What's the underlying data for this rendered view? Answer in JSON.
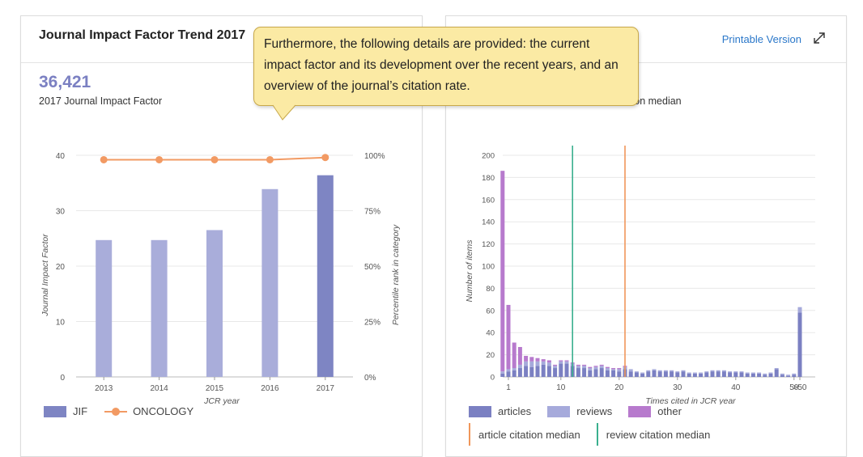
{
  "left_panel": {
    "title": "Journal Impact Factor Trend 2017",
    "jif_value": "36,421",
    "jif_caption": "2017 Journal Impact Factor"
  },
  "right_panel": {
    "printable_label": "Printable Version",
    "caption_fragment": "tion median"
  },
  "tooltip": {
    "text": "Furthermore, the following details are provided: the current impact factor and its development over the recent years, and an overview of the journal’s citation rate."
  },
  "colors": {
    "jif": "#7e85c3",
    "jif_light": "#a9adda",
    "oncology": "#f29a63",
    "articles": "#7b80c2",
    "reviews": "#a6aadb",
    "other": "#b77acd",
    "article_median": "#f0965a",
    "review_median": "#3aaf8e"
  },
  "chart_data": [
    {
      "type": "bar",
      "categories": [
        "2013",
        "2014",
        "2015",
        "2016",
        "2017"
      ],
      "series": [
        {
          "name": "JIF",
          "values": [
            24.7,
            24.7,
            26.5,
            33.9,
            36.4
          ]
        },
        {
          "name": "ONCOLOGY",
          "values": [
            98,
            98,
            98,
            98,
            99
          ]
        }
      ],
      "xlabel": "JCR year",
      "ylabel": "Journal Impact Factor",
      "y2label": "Percentile rank in category",
      "ylim": [
        0,
        40
      ],
      "yticks": [
        "0",
        "10",
        "20",
        "30",
        "40"
      ],
      "y2lim": [
        0,
        100
      ],
      "y2ticks": [
        "0%",
        "25%",
        "50%",
        "75%",
        "100%"
      ],
      "legend": [
        {
          "name": "JIF",
          "kind": "bar"
        },
        {
          "name": "ONCOLOGY",
          "kind": "line"
        }
      ],
      "grid": true
    },
    {
      "type": "bar",
      "xlabel": "Times cited in JCR year",
      "ylabel": "Number of items",
      "ylim": [
        0,
        200
      ],
      "yticks": [
        "0",
        "20",
        "40",
        "60",
        "80",
        "100",
        "120",
        "140",
        "160",
        "180",
        "200"
      ],
      "xtick_labels": [
        {
          "x": 1,
          "label": "1"
        },
        {
          "x": 10,
          "label": "10"
        },
        {
          "x": 20,
          "label": "20"
        },
        {
          "x": 30,
          "label": "30"
        },
        {
          "x": 40,
          "label": "40"
        },
        {
          "x": 50,
          "label": "50"
        },
        {
          "x": 51,
          "label": ">50"
        }
      ],
      "x": [
        0,
        1,
        2,
        3,
        4,
        5,
        6,
        7,
        8,
        9,
        10,
        11,
        12,
        13,
        14,
        15,
        16,
        17,
        18,
        19,
        20,
        21,
        22,
        23,
        24,
        25,
        26,
        27,
        28,
        29,
        30,
        31,
        32,
        33,
        34,
        35,
        36,
        37,
        38,
        39,
        40,
        41,
        42,
        43,
        44,
        45,
        46,
        47,
        48,
        49,
        50,
        51
      ],
      "series": [
        {
          "name": "articles",
          "values": [
            3,
            5,
            6,
            8,
            10,
            9,
            10,
            11,
            10,
            8,
            12,
            12,
            10,
            8,
            8,
            6,
            7,
            8,
            6,
            6,
            5,
            7,
            5,
            4,
            3,
            5,
            6,
            5,
            5,
            5,
            4,
            5,
            3,
            3,
            3,
            4,
            5,
            5,
            5,
            4,
            4,
            4,
            3,
            3,
            3,
            2,
            3,
            7,
            2,
            1,
            2,
            58
          ]
        },
        {
          "name": "reviews",
          "values": [
            2,
            2,
            2,
            3,
            4,
            5,
            4,
            3,
            3,
            2,
            2,
            2,
            2,
            2,
            2,
            2,
            2,
            2,
            2,
            1,
            2,
            2,
            2,
            1,
            1,
            1,
            1,
            1,
            1,
            1,
            1,
            1,
            1,
            1,
            1,
            1,
            1,
            1,
            1,
            1,
            1,
            1,
            1,
            1,
            1,
            1,
            1,
            1,
            1,
            1,
            1,
            5
          ]
        },
        {
          "name": "other",
          "values": [
            181,
            58,
            23,
            16,
            5,
            4,
            3,
            2,
            2,
            1,
            1,
            1,
            1,
            1,
            1,
            1,
            1,
            1,
            1,
            1,
            1,
            1,
            0,
            0,
            0,
            0,
            0,
            0,
            0,
            0,
            0,
            0,
            0,
            0,
            0,
            0,
            0,
            0,
            0,
            0,
            0,
            0,
            0,
            0,
            0,
            0,
            0,
            0,
            0,
            0,
            0,
            0
          ]
        }
      ],
      "medians": [
        {
          "name": "article citation median",
          "x": 21
        },
        {
          "name": "review citation median",
          "x": 12
        }
      ],
      "legend": [
        {
          "name": "articles",
          "kind": "swatch"
        },
        {
          "name": "reviews",
          "kind": "swatch"
        },
        {
          "name": "other",
          "kind": "swatch"
        },
        {
          "name": "article citation median",
          "kind": "line"
        },
        {
          "name": "review citation median",
          "kind": "line"
        }
      ],
      "grid": true
    }
  ]
}
